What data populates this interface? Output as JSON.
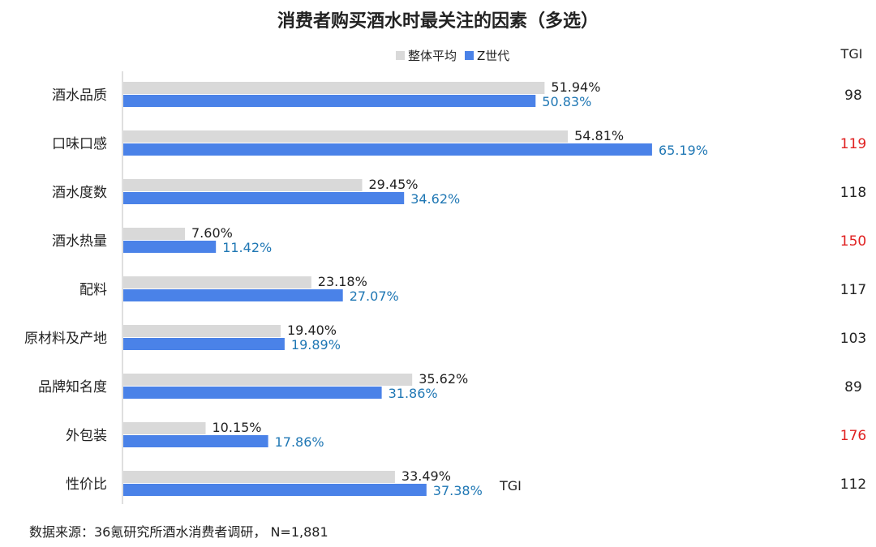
{
  "title": "消费者购买酒水时最关注的因素（多选）",
  "tgi_header": "TGI",
  "stray_label": "TGI",
  "source": "数据来源：36氪研究所酒水消费者调研， N=1,881",
  "colors": {
    "overall": "#d9d9d9",
    "genz": "#4a82e8",
    "genz_label": "#1f77b4",
    "tgi_high": "#e02020",
    "text": "#222222"
  },
  "chart_data": {
    "type": "bar",
    "orientation": "horizontal",
    "title": "消费者购买酒水时最关注的因素（多选）",
    "categories": [
      "酒水品质",
      "口味口感",
      "酒水度数",
      "酒水热量",
      "配料",
      "原材料及产地",
      "品牌知名度",
      "外包装",
      "性价比"
    ],
    "series": [
      {
        "name": "整体平均",
        "values": [
          51.94,
          54.81,
          29.45,
          7.6,
          23.18,
          19.4,
          35.62,
          10.15,
          33.49
        ],
        "labels": [
          "51.94%",
          "54.81%",
          "29.45%",
          "7.60%",
          "23.18%",
          "19.40%",
          "35.62%",
          "10.15%",
          "33.49%"
        ]
      },
      {
        "name": "Z世代",
        "values": [
          50.83,
          65.19,
          34.62,
          11.42,
          27.07,
          19.89,
          31.86,
          17.86,
          37.38
        ],
        "labels": [
          "50.83%",
          "65.19%",
          "34.62%",
          "11.42%",
          "27.07%",
          "19.89%",
          "31.86%",
          "17.86%",
          "37.38%"
        ]
      }
    ],
    "tgi": [
      98,
      119,
      118,
      150,
      117,
      103,
      89,
      176,
      112
    ],
    "tgi_highlight": [
      false,
      true,
      false,
      true,
      false,
      false,
      false,
      true,
      false
    ],
    "xlim": [
      0,
      100
    ],
    "grid": false,
    "legend_position": "top"
  }
}
